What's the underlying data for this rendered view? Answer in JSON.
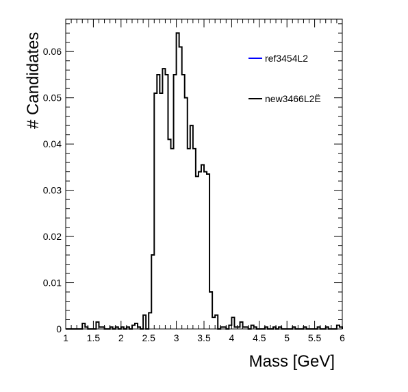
{
  "chart_data": {
    "type": "histogram",
    "xlabel": "Mass [GeV]",
    "ylabel": "# Candidates",
    "xlim": [
      1,
      6
    ],
    "ylim": [
      0,
      0.067
    ],
    "x_ticks": [
      "1",
      "1.5",
      "2",
      "2.5",
      "3",
      "3.5",
      "4",
      "4.5",
      "5",
      "5.5",
      "6"
    ],
    "y_ticks": [
      "0",
      "0.01",
      "0.02",
      "0.03",
      "0.04",
      "0.05",
      "0.06"
    ],
    "grid": false,
    "legend_position": "top-right",
    "series": [
      {
        "name": "ref3454L2",
        "color": "#0000ff",
        "bins": []
      },
      {
        "name": "new3466L2Ë",
        "color": "#000000",
        "bin_width": 0.05,
        "bins": [
          [
            1.3,
            0.0012
          ],
          [
            1.35,
            0.0004
          ],
          [
            1.55,
            0.0015
          ],
          [
            1.6,
            0.0004
          ],
          [
            1.65,
            0.0004
          ],
          [
            1.8,
            0.0004
          ],
          [
            1.9,
            0.0004
          ],
          [
            2.0,
            0.0004
          ],
          [
            2.1,
            0.0004
          ],
          [
            2.2,
            0.0008
          ],
          [
            2.25,
            0.0012
          ],
          [
            2.3,
            0.0004
          ],
          [
            2.4,
            0.003
          ],
          [
            2.5,
            0.0035
          ],
          [
            2.55,
            0.016
          ],
          [
            2.6,
            0.051
          ],
          [
            2.65,
            0.055
          ],
          [
            2.7,
            0.051
          ],
          [
            2.75,
            0.0563
          ],
          [
            2.8,
            0.055
          ],
          [
            2.85,
            0.041
          ],
          [
            2.9,
            0.039
          ],
          [
            2.95,
            0.055
          ],
          [
            3.0,
            0.064
          ],
          [
            3.05,
            0.061
          ],
          [
            3.1,
            0.055
          ],
          [
            3.15,
            0.05
          ],
          [
            3.2,
            0.039
          ],
          [
            3.25,
            0.044
          ],
          [
            3.3,
            0.039
          ],
          [
            3.35,
            0.033
          ],
          [
            3.4,
            0.034
          ],
          [
            3.45,
            0.0355
          ],
          [
            3.5,
            0.034
          ],
          [
            3.55,
            0.0335
          ],
          [
            3.6,
            0.008
          ],
          [
            3.65,
            0.0025
          ],
          [
            3.7,
            0.003
          ],
          [
            3.8,
            0.0004
          ],
          [
            3.85,
            0.0004
          ],
          [
            3.95,
            0.0008
          ],
          [
            4.0,
            0.0025
          ],
          [
            4.05,
            0.0004
          ],
          [
            4.1,
            0.0004
          ],
          [
            4.15,
            0.0015
          ],
          [
            4.2,
            0.0004
          ],
          [
            4.25,
            0.0004
          ],
          [
            4.35,
            0.0008
          ],
          [
            4.4,
            0.0004
          ],
          [
            4.6,
            0.0004
          ],
          [
            4.75,
            0.0004
          ],
          [
            4.85,
            0.0004
          ],
          [
            5.1,
            0.0004
          ],
          [
            5.3,
            0.0004
          ],
          [
            5.55,
            0.0004
          ],
          [
            5.7,
            0.0004
          ],
          [
            5.9,
            0.0008
          ],
          [
            5.95,
            0.0004
          ]
        ]
      }
    ]
  }
}
